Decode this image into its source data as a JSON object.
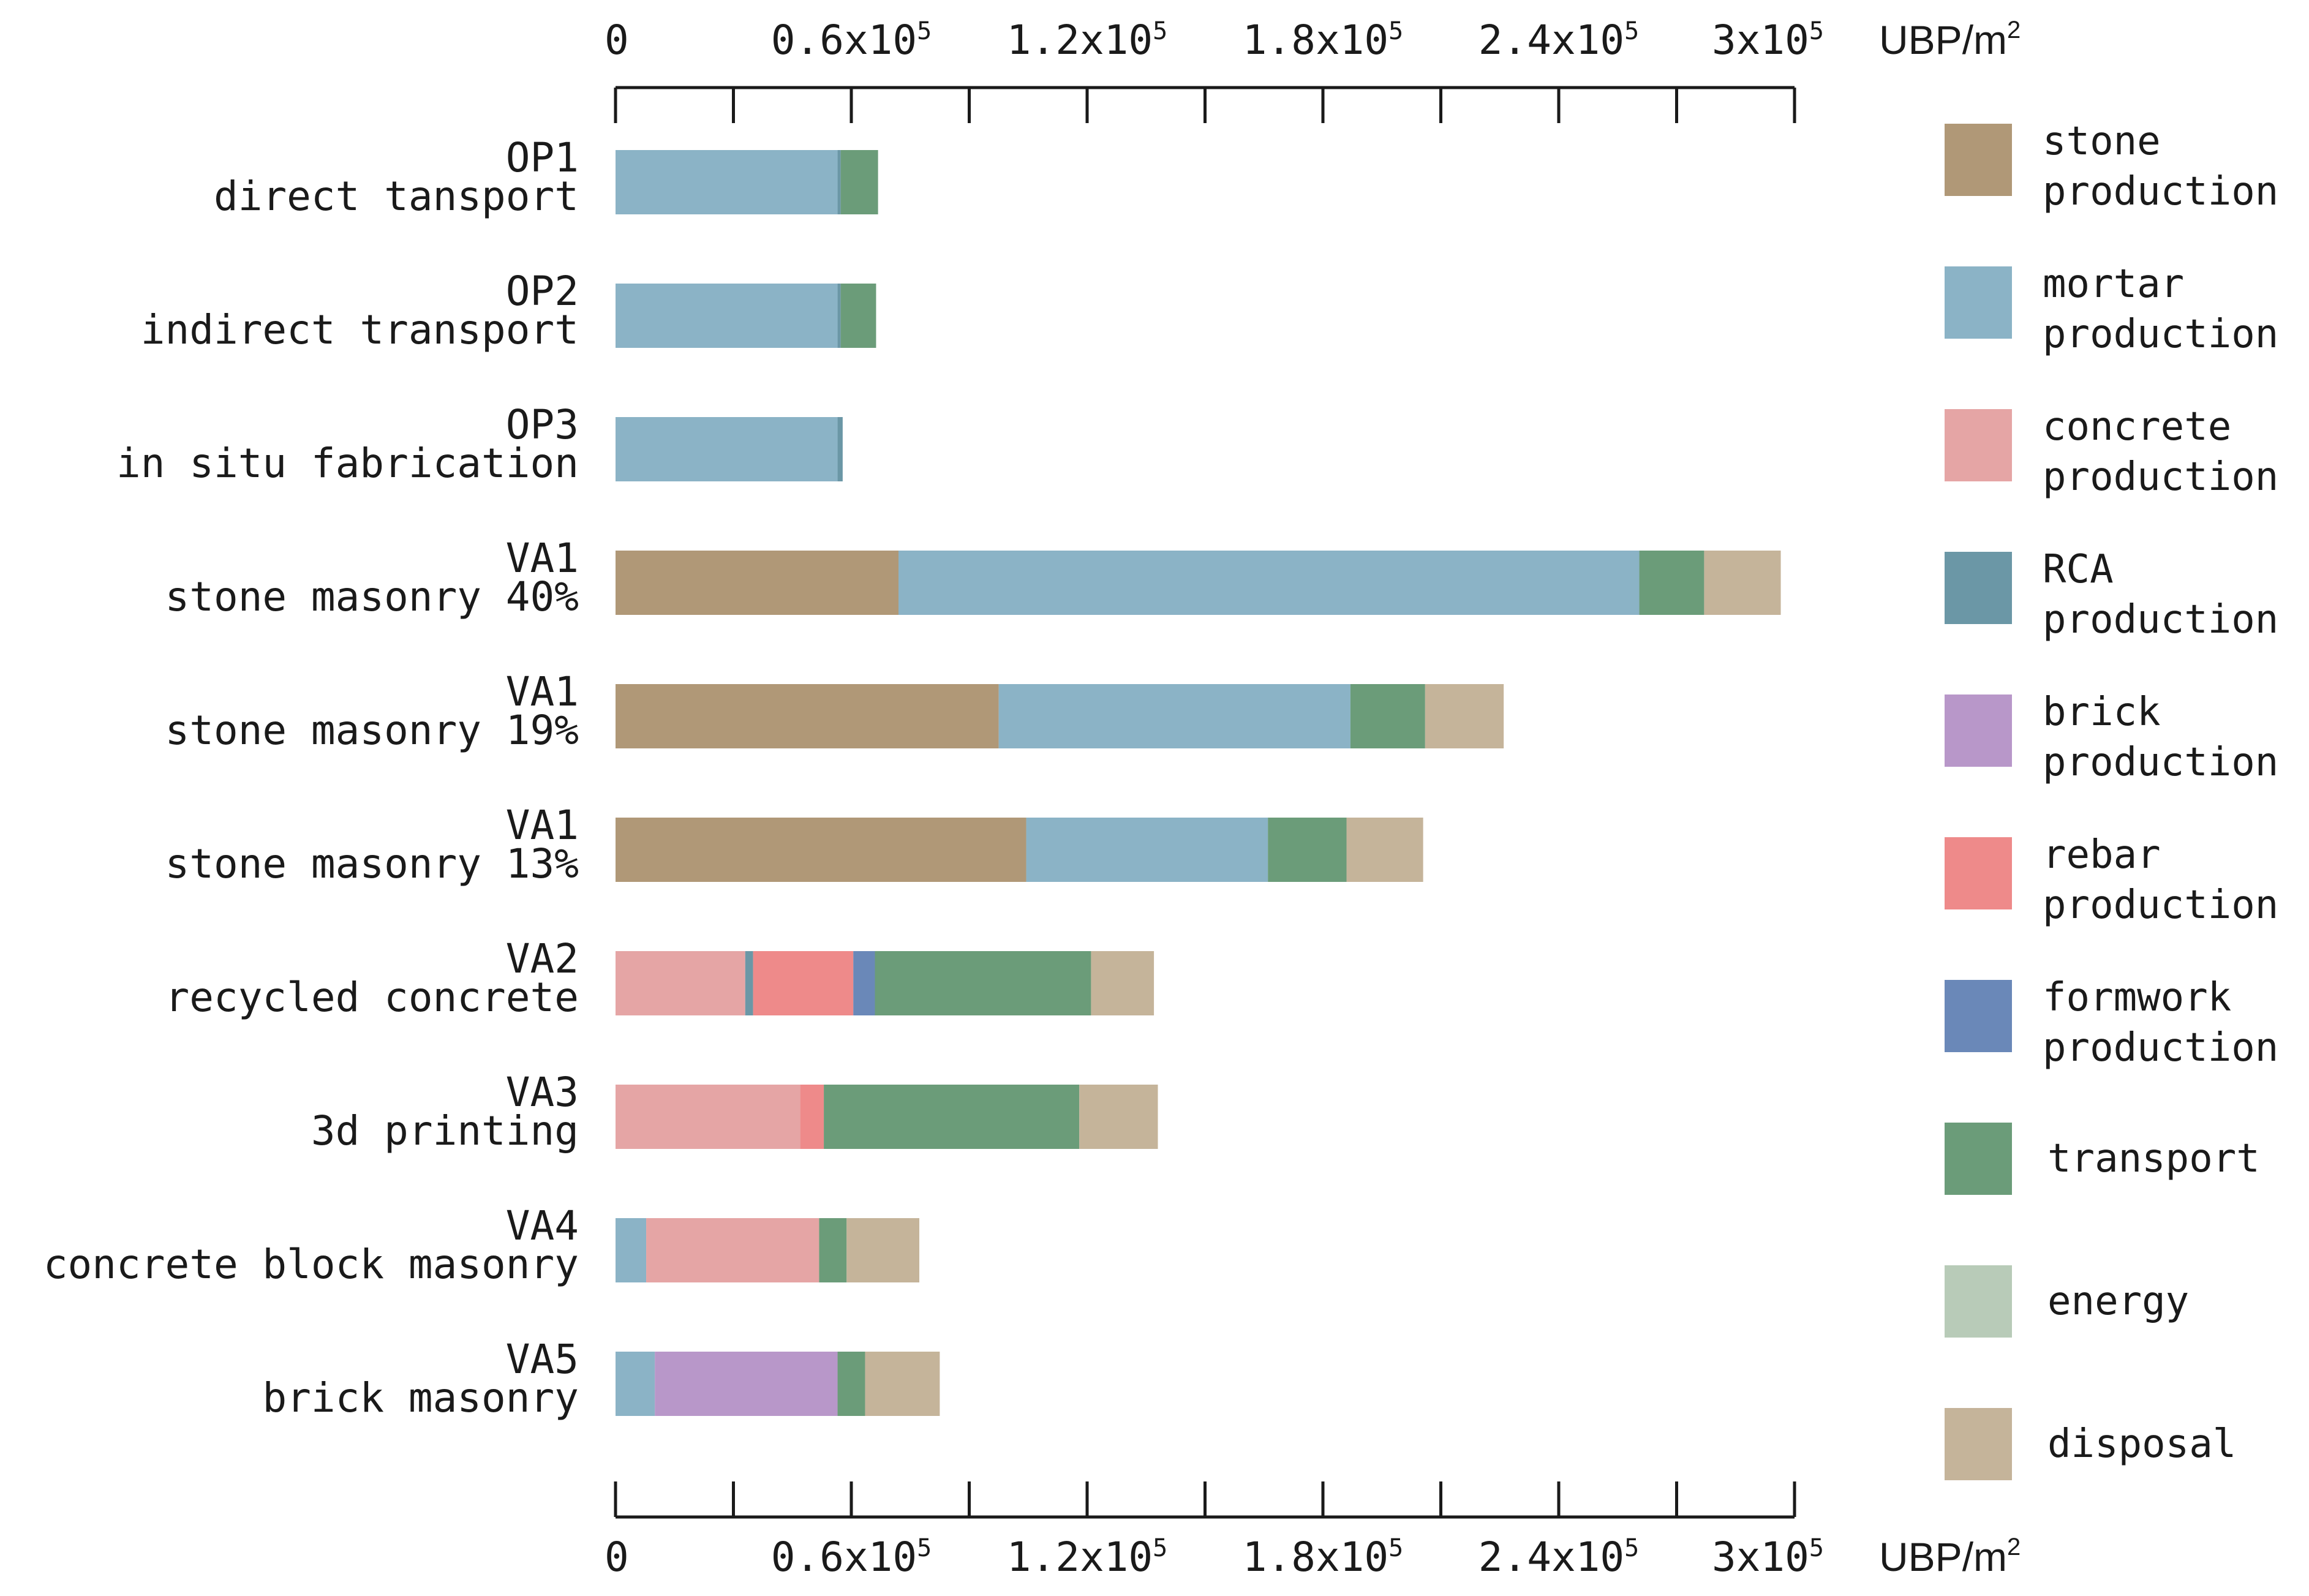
{
  "chart_data": {
    "type": "bar",
    "orientation": "horizontal",
    "stacked": true,
    "title": "",
    "xlabel": "",
    "ylabel": "",
    "unit": "UBP/m",
    "unit_superscript": "2",
    "xlim": [
      0,
      300000
    ],
    "ticks": [
      {
        "value": 0,
        "mantissa": "0",
        "exp": ""
      },
      {
        "value": 60000,
        "mantissa": "0.6x10",
        "exp": "5"
      },
      {
        "value": 120000,
        "mantissa": "1.2x10",
        "exp": "5"
      },
      {
        "value": 180000,
        "mantissa": "1.8x10",
        "exp": "5"
      },
      {
        "value": 240000,
        "mantissa": "2.4x10",
        "exp": "5"
      },
      {
        "value": 300000,
        "mantissa": "3x10",
        "exp": "5"
      }
    ],
    "categories": [
      {
        "code": "OP1",
        "name": "direct tansport"
      },
      {
        "code": "OP2",
        "name": "indirect transport"
      },
      {
        "code": "OP3",
        "name": "in situ fabrication"
      },
      {
        "code": "VA1",
        "name": "stone masonry 40%"
      },
      {
        "code": "VA1",
        "name": "stone masonry 19%"
      },
      {
        "code": "VA1",
        "name": "stone masonry 13%"
      },
      {
        "code": "VA2",
        "name": "recycled concrete"
      },
      {
        "code": "VA3",
        "name": "3d printing"
      },
      {
        "code": "VA4",
        "name": "concrete block masonry"
      },
      {
        "code": "VA5",
        "name": "brick masonry"
      }
    ],
    "series": [
      {
        "key": "stone",
        "name": [
          "stone",
          "production"
        ],
        "color": "#b09877",
        "values": [
          0,
          0,
          0,
          72000,
          97500,
          104500,
          0,
          0,
          0,
          0
        ]
      },
      {
        "key": "mortar",
        "name": [
          "mortar",
          "production"
        ],
        "color": "#8bb3c6",
        "values": [
          56500,
          56500,
          56500,
          188500,
          89500,
          61500,
          0,
          0,
          7800,
          10000
        ]
      },
      {
        "key": "concrete",
        "name": [
          "concrete",
          "production"
        ],
        "color": "#e5a5a5",
        "values": [
          0,
          0,
          0,
          0,
          0,
          0,
          33000,
          47000,
          44000,
          0
        ]
      },
      {
        "key": "rca",
        "name": [
          "RCA",
          "production"
        ],
        "color": "#6b97a6",
        "values": [
          800,
          800,
          1300,
          0,
          0,
          0,
          2000,
          0,
          0,
          0
        ]
      },
      {
        "key": "brick",
        "name": [
          "brick",
          "production"
        ],
        "color": "#b897c9",
        "values": [
          0,
          0,
          0,
          0,
          0,
          0,
          0,
          0,
          0,
          46500
        ]
      },
      {
        "key": "rebar",
        "name": [
          "rebar",
          "production"
        ],
        "color": "#ee8a8a",
        "values": [
          0,
          0,
          0,
          0,
          0,
          0,
          25500,
          6000,
          0,
          0
        ]
      },
      {
        "key": "formwork",
        "name": [
          "formwork",
          "production"
        ],
        "color": "#6a88b8",
        "values": [
          0,
          0,
          0,
          0,
          0,
          0,
          5500,
          0,
          0,
          0
        ]
      },
      {
        "key": "transport",
        "name": [
          "transport"
        ],
        "color": "#6b9c79",
        "values": [
          9500,
          9000,
          0,
          16500,
          19000,
          20000,
          55000,
          65000,
          7000,
          7000
        ]
      },
      {
        "key": "energy",
        "name": [
          "energy"
        ],
        "color": "#b8cbb8",
        "values": [
          0,
          0,
          0,
          0,
          0,
          0,
          0,
          0,
          0,
          0
        ]
      },
      {
        "key": "disposal",
        "name": [
          "disposal"
        ],
        "color": "#c5b49a",
        "values": [
          0,
          0,
          0,
          19500,
          20000,
          19500,
          16000,
          20000,
          18500,
          19000
        ]
      }
    ],
    "legend_position": "right",
    "grid": false
  }
}
